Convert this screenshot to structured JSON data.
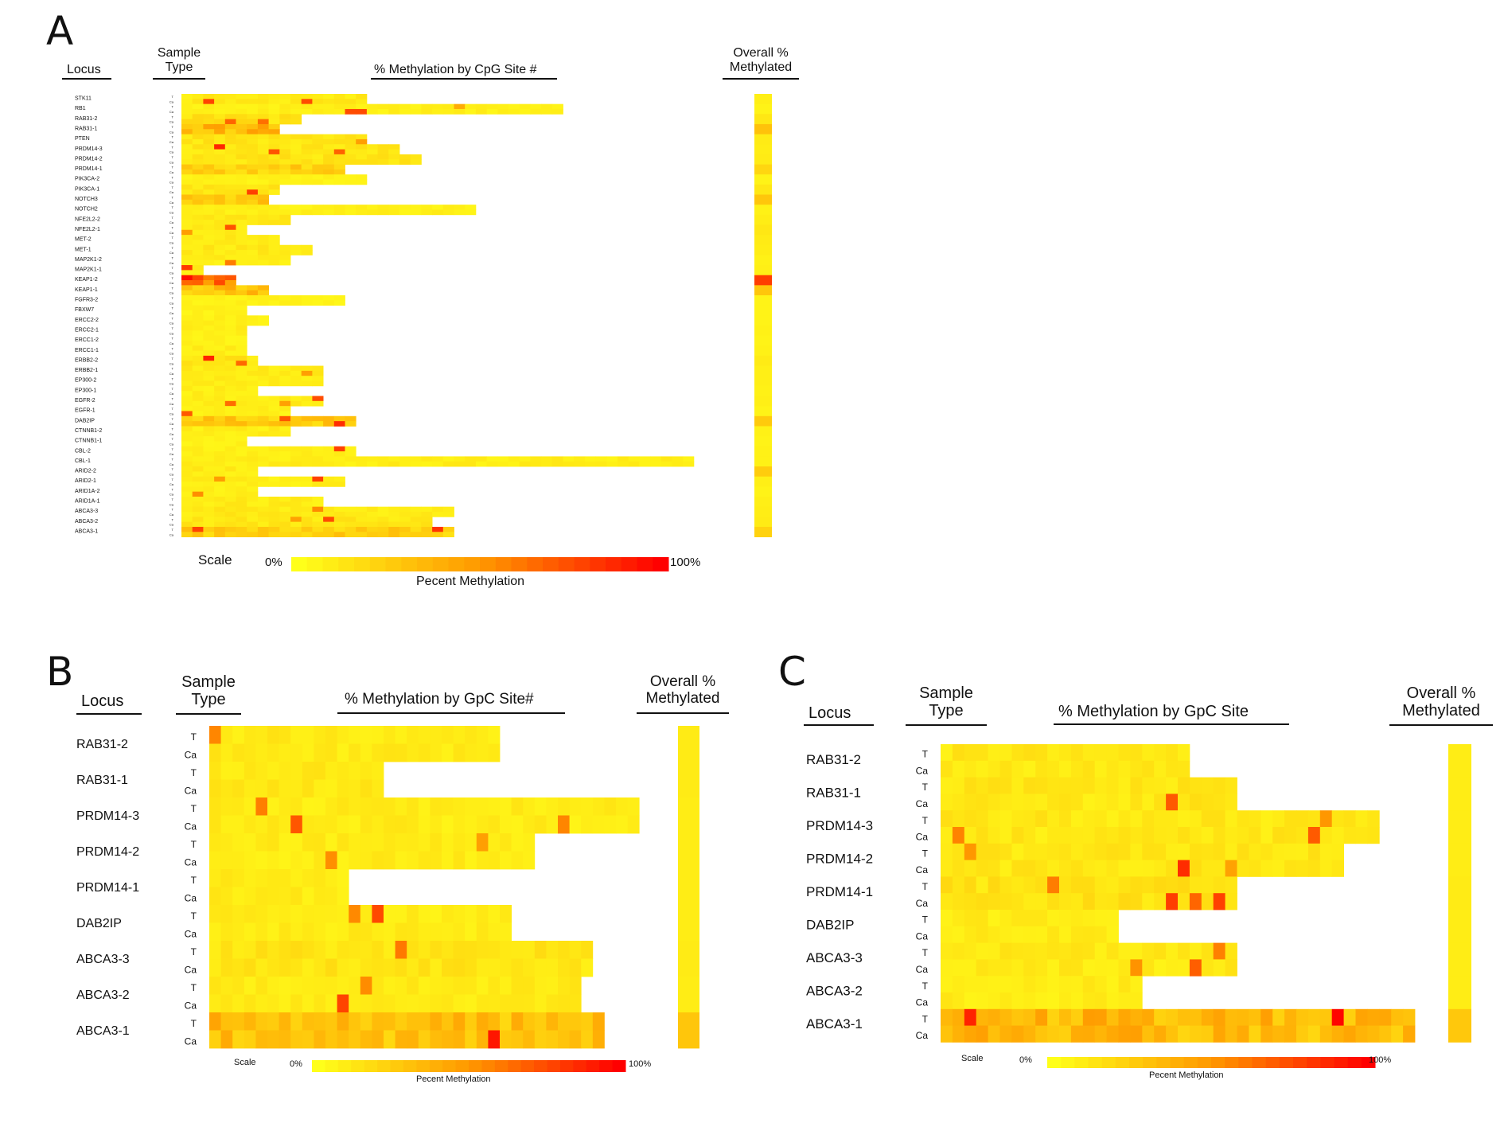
{
  "colors": {
    "low": "#ffff1a",
    "mid": "#ff9900",
    "high": "#ff0000",
    "background": "#ffffff",
    "text": "#111111"
  },
  "panels": [
    {
      "letter": "A",
      "headers": {
        "locus": "Locus",
        "sample": "Sample Type",
        "site": "% Methylation by CpG Site #",
        "overall": "Overall % Methylated"
      },
      "scale": {
        "label": "Scale",
        "min": "0%",
        "max": "100%",
        "caption": "Pecent Methylation"
      }
    },
    {
      "letter": "B",
      "headers": {
        "locus": "Locus",
        "sample": "Sample Type",
        "site": "% Methylation by GpC Site#",
        "overall": "Overall % Methylated"
      },
      "scale": {
        "label": "Scale",
        "min": "0%",
        "max": "100%",
        "caption": "Pecent Methylation"
      }
    },
    {
      "letter": "C",
      "headers": {
        "locus": "Locus",
        "sample": "Sample Type",
        "site": "% Methylation by GpC Site",
        "overall": "Overall % Methylated"
      },
      "scale": {
        "label": "Scale",
        "min": "0%",
        "max": "100%",
        "caption": "Pecent Methylation"
      }
    }
  ],
  "chart_data": [
    {
      "type": "heatmap",
      "panel": "A",
      "value_range": [
        0,
        100
      ],
      "sample_types": [
        "T",
        "Ca"
      ],
      "rows": [
        {
          "locus": "STK11",
          "sites": 17,
          "overall": 8,
          "base": 10
        },
        {
          "locus": "RB1",
          "sites": 35,
          "overall": 6,
          "base": 7
        },
        {
          "locus": "RAB31-2",
          "sites": 11,
          "overall": 12,
          "base": 14
        },
        {
          "locus": "RAB31-1",
          "sites": 9,
          "overall": 30,
          "base": 33
        },
        {
          "locus": "PTEN",
          "sites": 17,
          "overall": 10,
          "base": 12
        },
        {
          "locus": "PRDM14-3",
          "sites": 20,
          "overall": 9,
          "base": 11
        },
        {
          "locus": "PRDM14-2",
          "sites": 22,
          "overall": 10,
          "base": 12
        },
        {
          "locus": "PRDM14-1",
          "sites": 15,
          "overall": 20,
          "base": 22
        },
        {
          "locus": "PIK3CA-2",
          "sites": 17,
          "overall": 6,
          "base": 6
        },
        {
          "locus": "PIK3CA-1",
          "sites": 9,
          "overall": 12,
          "base": 12
        },
        {
          "locus": "NOTCH3",
          "sites": 8,
          "overall": 28,
          "base": 26
        },
        {
          "locus": "NOTCH2",
          "sites": 27,
          "overall": 7,
          "base": 7
        },
        {
          "locus": "NFE2L2-2",
          "sites": 10,
          "overall": 9,
          "base": 10
        },
        {
          "locus": "NFE2L2-1",
          "sites": 6,
          "overall": 12,
          "base": 10
        },
        {
          "locus": "MET-2",
          "sites": 9,
          "overall": 10,
          "base": 10
        },
        {
          "locus": "MET-1",
          "sites": 12,
          "overall": 9,
          "base": 10
        },
        {
          "locus": "MAP2K1-2",
          "sites": 10,
          "overall": 7,
          "base": 8
        },
        {
          "locus": "MAP2K1-1",
          "sites": 2,
          "overall": 8,
          "base": 8
        },
        {
          "locus": "KEAP1-2",
          "sites": 5,
          "overall": 80,
          "base": 70
        },
        {
          "locus": "KEAP1-1",
          "sites": 8,
          "overall": 28,
          "base": 30
        },
        {
          "locus": "FGFR3-2",
          "sites": 15,
          "overall": 6,
          "base": 6
        },
        {
          "locus": "FBXW7",
          "sites": 6,
          "overall": 6,
          "base": 6
        },
        {
          "locus": "ERCC2-2",
          "sites": 8,
          "overall": 6,
          "base": 7
        },
        {
          "locus": "ERCC2-1",
          "sites": 6,
          "overall": 7,
          "base": 8
        },
        {
          "locus": "ERCC1-2",
          "sites": 6,
          "overall": 6,
          "base": 6
        },
        {
          "locus": "ERCC1-1",
          "sites": 6,
          "overall": 7,
          "base": 8
        },
        {
          "locus": "ERBB2-2",
          "sites": 7,
          "overall": 10,
          "base": 12
        },
        {
          "locus": "ERBB2-1",
          "sites": 13,
          "overall": 8,
          "base": 9
        },
        {
          "locus": "EP300-2",
          "sites": 13,
          "overall": 8,
          "base": 9
        },
        {
          "locus": "EP300-1",
          "sites": 7,
          "overall": 7,
          "base": 8
        },
        {
          "locus": "EGFR-2",
          "sites": 13,
          "overall": 8,
          "base": 9
        },
        {
          "locus": "EGFR-1",
          "sites": 10,
          "overall": 6,
          "base": 7
        },
        {
          "locus": "DAB2IP",
          "sites": 16,
          "overall": 26,
          "base": 24
        },
        {
          "locus": "CTNNB1-2",
          "sites": 10,
          "overall": 7,
          "base": 8
        },
        {
          "locus": "CTNNB1-1",
          "sites": 6,
          "overall": 6,
          "base": 6
        },
        {
          "locus": "CBL-2",
          "sites": 16,
          "overall": 7,
          "base": 7
        },
        {
          "locus": "CBL-1",
          "sites": 47,
          "overall": 7,
          "base": 8
        },
        {
          "locus": "ARID2-2",
          "sites": 7,
          "overall": 25,
          "base": 9
        },
        {
          "locus": "ARID2-1",
          "sites": 15,
          "overall": 8,
          "base": 8
        },
        {
          "locus": "ARID1A-2",
          "sites": 7,
          "overall": 6,
          "base": 7
        },
        {
          "locus": "ARID1A-1",
          "sites": 13,
          "overall": 8,
          "base": 9
        },
        {
          "locus": "ABCA3-3",
          "sites": 25,
          "overall": 9,
          "base": 10
        },
        {
          "locus": "ABCA3-2",
          "sites": 23,
          "overall": 10,
          "base": 11
        },
        {
          "locus": "ABCA3-1",
          "sites": 25,
          "overall": 22,
          "base": 22
        }
      ]
    },
    {
      "type": "heatmap",
      "panel": "B",
      "value_range": [
        0,
        100
      ],
      "sample_types": [
        "T",
        "Ca"
      ],
      "rows": [
        {
          "locus": "RAB31-2",
          "sites": 25,
          "overall": 10,
          "base": 10
        },
        {
          "locus": "RAB31-1",
          "sites": 15,
          "overall": 10,
          "base": 10
        },
        {
          "locus": "PRDM14-3",
          "sites": 37,
          "overall": 9,
          "base": 9
        },
        {
          "locus": "PRDM14-2",
          "sites": 28,
          "overall": 9,
          "base": 9
        },
        {
          "locus": "PRDM14-1",
          "sites": 12,
          "overall": 9,
          "base": 9
        },
        {
          "locus": "DAB2IP",
          "sites": 26,
          "overall": 9,
          "base": 9
        },
        {
          "locus": "ABCA3-3",
          "sites": 33,
          "overall": 10,
          "base": 12
        },
        {
          "locus": "ABCA3-2",
          "sites": 32,
          "overall": 9,
          "base": 10
        },
        {
          "locus": "ABCA3-1",
          "sites": 34,
          "overall": 28,
          "base": 30
        }
      ]
    },
    {
      "type": "heatmap",
      "panel": "C",
      "value_range": [
        0,
        100
      ],
      "sample_types": [
        "T",
        "Ca"
      ],
      "rows": [
        {
          "locus": "RAB31-2",
          "sites": 21,
          "overall": 9,
          "base": 11
        },
        {
          "locus": "RAB31-1",
          "sites": 25,
          "overall": 9,
          "base": 11
        },
        {
          "locus": "PRDM14-3",
          "sites": 37,
          "overall": 9,
          "base": 11
        },
        {
          "locus": "PRDM14-2",
          "sites": 34,
          "overall": 9,
          "base": 11
        },
        {
          "locus": "PRDM14-1",
          "sites": 25,
          "overall": 10,
          "base": 13
        },
        {
          "locus": "DAB2IP",
          "sites": 15,
          "overall": 9,
          "base": 9
        },
        {
          "locus": "ABCA3-3",
          "sites": 25,
          "overall": 9,
          "base": 10
        },
        {
          "locus": "ABCA3-2",
          "sites": 17,
          "overall": 9,
          "base": 9
        },
        {
          "locus": "ABCA3-1",
          "sites": 40,
          "overall": 27,
          "base": 32
        }
      ]
    }
  ]
}
